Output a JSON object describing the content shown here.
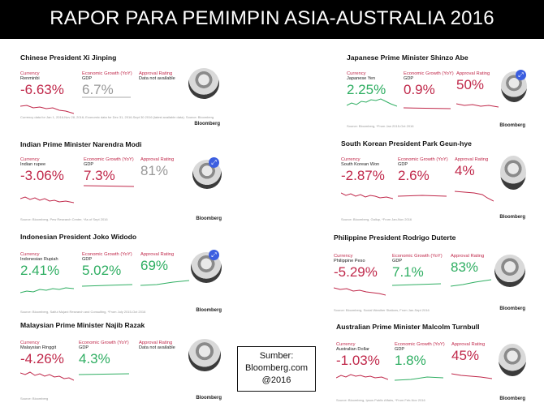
{
  "title": "RAPOR PARA PEMIMPIN ASIA-AUSTRALIA 2016",
  "colors": {
    "negative": "#c0284a",
    "positive": "#2fae62",
    "neutral": "#999999",
    "header_bg": "#000000"
  },
  "brand": "Bloomberg",
  "sumber": {
    "line1": "Sumber:",
    "line2": "Bloomberg.com",
    "line3": "@2016"
  },
  "cards": [
    {
      "title": "Chinese President Xi Jinping",
      "currency": {
        "label": "Currency",
        "sub": "Renminbi",
        "value": "-6.63%"
      },
      "growth": {
        "label": "Economic Growth (YoY)",
        "sub": "GDP",
        "value": "6.7%"
      },
      "approval": {
        "label": "Approval Rating",
        "sub": "Data not available",
        "value": ""
      },
      "source": "Currency data for Jan 1, 2016-Nov 28, 2016; Economic data for Dec 31, 2016-Sept 30 2016 (latest available data). Source: Bloomberg"
    },
    {
      "title": "Indian Prime Minister Narendra Modi",
      "currency": {
        "label": "Currency",
        "sub": "Indian rupee",
        "value": "-3.06%"
      },
      "growth": {
        "label": "Economic Growth (YoY)",
        "sub": "GDP",
        "value": "7.3%"
      },
      "approval": {
        "label": "Approval Rating",
        "sub": "",
        "value": "81%"
      },
      "source": "Source: Bloomberg, Pew Research Center, *As of Sept 2016"
    },
    {
      "title": "Indonesian President Joko Widodo",
      "currency": {
        "label": "Currency",
        "sub": "Indonesian Rupiah",
        "value": "2.41%"
      },
      "growth": {
        "label": "Economic Growth (YoY)",
        "sub": "GDP",
        "value": "5.02%"
      },
      "approval": {
        "label": "Approval Rating",
        "sub": "",
        "value": "69%"
      },
      "source": "Source: Bloomberg, Saiful Mujani Research and Consulting, *From July 2015-Oct 2016"
    },
    {
      "title": "Malaysian Prime Minister Najib Razak",
      "currency": {
        "label": "Currency",
        "sub": "Malaysian Ringgit",
        "value": "-4.26%"
      },
      "growth": {
        "label": "Economic Growth (YoY)",
        "sub": "GDP",
        "value": "4.3%"
      },
      "approval": {
        "label": "Approval Rating",
        "sub": "Data not available",
        "value": ""
      },
      "source": "Source: Bloomberg"
    },
    {
      "title": "Japanese Prime Minister Shinzo Abe",
      "currency": {
        "label": "Currency",
        "sub": "Japanese Yen",
        "value": "2.25%"
      },
      "growth": {
        "label": "Economic Growth (YoY)",
        "sub": "GDP",
        "value": "0.9%"
      },
      "approval": {
        "label": "Approval Rating",
        "sub": "",
        "value": "50%"
      },
      "source": "Source: Bloomberg, *From Jan 2015-Oct 2016"
    },
    {
      "title": "South Korean President Park Geun-hye",
      "currency": {
        "label": "Currency",
        "sub": "South Korean Won",
        "value": "-2.87%"
      },
      "growth": {
        "label": "Economic Growth (YoY)",
        "sub": "GDP",
        "value": "2.6%"
      },
      "approval": {
        "label": "Approval Rating",
        "sub": "",
        "value": "4%"
      },
      "source": "Source: Bloomberg, Gallup, *From Jan-Nov 2016"
    },
    {
      "title": "Philippine President Rodrigo Duterte",
      "currency": {
        "label": "Currency",
        "sub": "Philippine Peso",
        "value": "-5.29%"
      },
      "growth": {
        "label": "Economic Growth (YoY)",
        "sub": "GDP",
        "value": "7.1%"
      },
      "approval": {
        "label": "Approval Rating",
        "sub": "",
        "value": "83%"
      },
      "source": "Source: Bloomberg, Social Weather Stations, From Jan-Sept 2016"
    },
    {
      "title": "Australian Prime Minister Malcolm Turnbull",
      "currency": {
        "label": "Currency",
        "sub": "Australian Dollar",
        "value": "-1.03%"
      },
      "growth": {
        "label": "Economic Growth (YoY)",
        "sub": "GDP",
        "value": "1.8%"
      },
      "approval": {
        "label": "Approval Rating",
        "sub": "",
        "value": "45%"
      },
      "source": "Source: Bloomberg, Ipsos Public Affairs, *From Feb-Nov 2016"
    }
  ]
}
